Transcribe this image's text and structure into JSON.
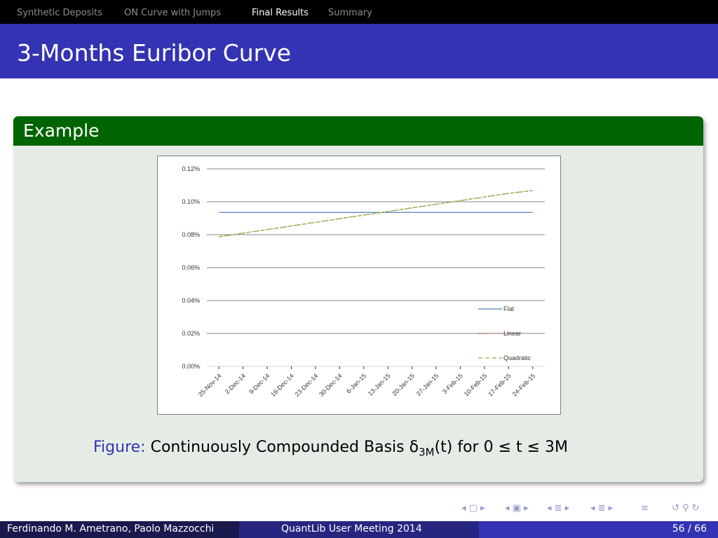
{
  "nav": {
    "sections": [
      "Synthetic Deposits",
      "ON Curve with Jumps",
      "Final Results",
      "Summary"
    ],
    "active_index": 2
  },
  "slide": {
    "title": "3-Months Euribor Curve",
    "block_title": "Example",
    "caption_label": "Figure:",
    "caption_text": "Continuously Compounded Basis δ",
    "caption_sub": "3M",
    "caption_tail": "(t) for 0 ≤ t ≤ 3M"
  },
  "footer": {
    "authors": "Ferdinando M. Ametrano, Paolo Mazzocchi",
    "event": "QuantLib User Meeting 2014",
    "page": "56 / 66"
  },
  "colors": {
    "nav_bg": "#000000",
    "title_bg": "#3333b3",
    "block_head": "#006400",
    "block_body": "#e5ece5"
  },
  "nav_icons": [
    "nav-frame-left-icon",
    "nav-frame-right-icon",
    "nav-subsection-icon",
    "nav-section-icon",
    "nav-align-icon",
    "nav-search-icon"
  ],
  "chart_data": {
    "type": "line",
    "categories": [
      "25-Nov-14",
      "2-Dec-14",
      "9-Dec-14",
      "16-Dec-14",
      "23-Dec-14",
      "30-Dec-14",
      "6-Jan-15",
      "13-Jan-15",
      "20-Jan-15",
      "27-Jan-15",
      "3-Feb-15",
      "10-Feb-15",
      "17-Feb-15",
      "24-Feb-15"
    ],
    "y_ticks": [
      "0.00%",
      "0.02%",
      "0.04%",
      "0.06%",
      "0.08%",
      "0.10%",
      "0.12%"
    ],
    "ylim": [
      0,
      0.12
    ],
    "grid": true,
    "legend_position": "bottom-right",
    "series": [
      {
        "name": "Flat",
        "color": "#4f81bd",
        "style": "solid",
        "values": [
          0.0935,
          0.0935,
          0.0935,
          0.0935,
          0.0935,
          0.0935,
          0.0935,
          0.0935,
          0.0935,
          0.0935,
          0.0935,
          0.0935,
          0.0935,
          0.0935
        ]
      },
      {
        "name": "Linear",
        "color": "#c0504d",
        "style": "dotted",
        "values": [
          0.0787,
          0.0809,
          0.0831,
          0.0853,
          0.0875,
          0.0897,
          0.0919,
          0.0941,
          0.0963,
          0.0985,
          0.1007,
          0.1029,
          0.1051,
          0.1068
        ]
      },
      {
        "name": "Quadratic",
        "color": "#9bbb59",
        "style": "dashed",
        "values": [
          0.0787,
          0.0809,
          0.0831,
          0.0853,
          0.0875,
          0.0897,
          0.0919,
          0.0941,
          0.0963,
          0.0985,
          0.1007,
          0.1029,
          0.1051,
          0.1068
        ]
      }
    ]
  }
}
